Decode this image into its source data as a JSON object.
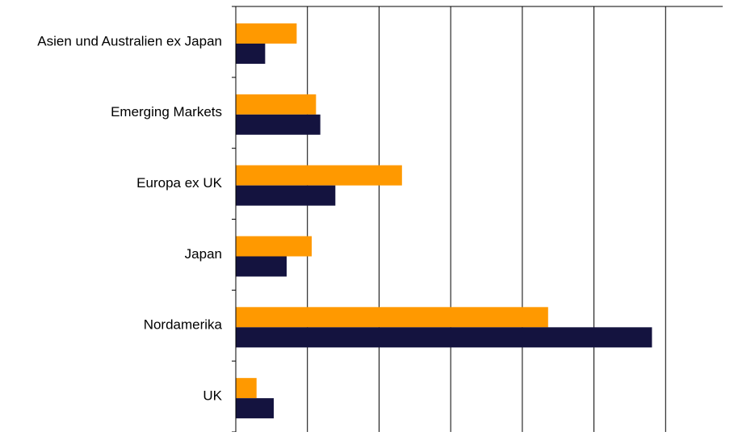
{
  "chart_data": {
    "type": "barh",
    "categories": [
      "Asien und Australien ex Japan",
      "Emerging Markets",
      "Europa ex UK",
      "Japan",
      "Nordamerika",
      "UK"
    ],
    "series": [
      {
        "color": "#ff9900",
        "values": [
          8.5,
          11.2,
          23.2,
          10.6,
          43.6,
          2.9
        ]
      },
      {
        "color": "#14133f",
        "values": [
          4.1,
          11.8,
          13.9,
          7.1,
          58.1,
          5.3
        ]
      }
    ],
    "xlim": [
      0,
      70
    ],
    "xticks": [
      0,
      10,
      20,
      30,
      40,
      50,
      60
    ],
    "grid": true
  }
}
